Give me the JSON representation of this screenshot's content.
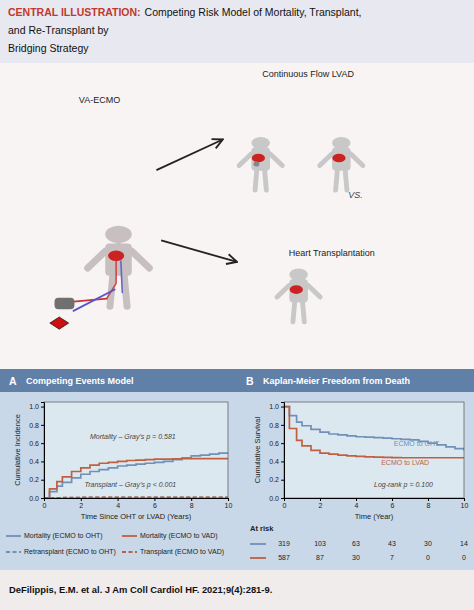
{
  "title": [
    "CENTRAL ILLUSTRATION:",
    "Competing Risk Model of Mortality, Transplant,",
    "and Re-Transplant by",
    "Bridging Strategy"
  ],
  "annotations": [
    "VA-ECMO",
    "Continuous Flow LVAD",
    "VS.",
    "Heart Transplantation",
    "DeFilippis, E.M. et al. J Am Coll Cardiol HF. 2021;9(4):281-9."
  ],
  "chart_data": [
    {
      "type": "step",
      "title": "Competing Events Model",
      "annotations": [
        "A",
        "Mortality – Gray’s p = 0.581",
        "Transplant – Gray’s p < 0.001"
      ],
      "xlabel": "Time Since OHT or LVAD (Years)",
      "ylabel": "Cumulative Incidence",
      "xlim": [
        0,
        10
      ],
      "ylim": [
        0.0,
        1.05
      ],
      "xticks": [
        0,
        2,
        4,
        6,
        8,
        10
      ],
      "yticks": [
        {
          "value": 0.0,
          "label": "0.0"
        },
        {
          "value": 0.2,
          "label": "0.2"
        },
        {
          "value": 0.4,
          "label": "0.4"
        },
        {
          "value": 0.6,
          "label": "0.6"
        },
        {
          "value": 0.8,
          "label": "0.8"
        },
        {
          "value": 1.0,
          "label": "1.0"
        }
      ],
      "grid": false,
      "legend": "bottom",
      "series": [
        {
          "name": "Mortality (ECMO to OHT)",
          "color": "#7090b8",
          "line_style": "solid",
          "x": [
            0,
            0.3,
            0.7,
            1.0,
            1.5,
            2.0,
            2.5,
            3.0,
            3.5,
            4.0,
            4.5,
            5.0,
            5.5,
            6.0,
            6.5,
            7.0,
            7.5,
            8.0,
            8.5,
            9.0,
            9.5,
            10.0
          ],
          "values": [
            0.0,
            0.07,
            0.13,
            0.17,
            0.22,
            0.26,
            0.29,
            0.31,
            0.33,
            0.35,
            0.36,
            0.37,
            0.38,
            0.39,
            0.4,
            0.42,
            0.44,
            0.46,
            0.47,
            0.48,
            0.49,
            0.495
          ]
        },
        {
          "name": "Mortality (ECMO to VAD)",
          "color": "#c06040",
          "line_style": "solid",
          "x": [
            0,
            0.3,
            0.7,
            1.0,
            1.5,
            2.0,
            2.5,
            3.0,
            3.5,
            4.0,
            4.5,
            5.0,
            5.5,
            6.0,
            6.5,
            7.0,
            7.5,
            8.0,
            8.5,
            9.0,
            9.5,
            10.0
          ],
          "values": [
            0.0,
            0.1,
            0.18,
            0.23,
            0.29,
            0.33,
            0.36,
            0.38,
            0.39,
            0.4,
            0.41,
            0.415,
            0.42,
            0.425,
            0.425,
            0.428,
            0.43,
            0.43,
            0.43,
            0.43,
            0.43,
            0.43
          ]
        },
        {
          "name": "Retransplant (ECMO to OHT)",
          "color": "#7090b8",
          "line_style": "dashed",
          "x": [
            0,
            0.5,
            1.0,
            1.5,
            2.0,
            2.5,
            3.0,
            3.5,
            4.0,
            4.5,
            5.0,
            5.5,
            6.0,
            6.5,
            7.0,
            7.5,
            8.0,
            8.5,
            9.0,
            9.5,
            10.0
          ],
          "values": [
            0.0,
            0.004,
            0.006,
            0.007,
            0.008,
            0.008,
            0.008,
            0.008,
            0.008,
            0.008,
            0.008,
            0.008,
            0.008,
            0.008,
            0.008,
            0.008,
            0.008,
            0.008,
            0.008,
            0.008,
            0.008
          ]
        },
        {
          "name": "Transplant (ECMO to VAD)",
          "color": "#c06040",
          "line_style": "dashed",
          "x": [
            0,
            0.5,
            1.0,
            1.5,
            2.0,
            2.5,
            3.0,
            3.5,
            4.0,
            4.5,
            5.0,
            5.5,
            6.0,
            6.5,
            7.0,
            7.5,
            8.0,
            8.5,
            9.0,
            9.5,
            10.0
          ],
          "values": [
            0.0,
            0.004,
            0.006,
            0.007,
            0.008,
            0.008,
            0.008,
            0.008,
            0.008,
            0.008,
            0.008,
            0.008,
            0.008,
            0.008,
            0.008,
            0.008,
            0.008,
            0.008,
            0.008,
            0.008,
            0.008
          ]
        }
      ]
    },
    {
      "type": "step",
      "title": "Kaplan-Meier Freedom from Death",
      "annotations": [
        "B",
        "Log-rank p = 0.100",
        "At risk"
      ],
      "xlabel": "Time (Year)",
      "ylabel": "Cumulative Survival",
      "xlim": [
        0,
        10
      ],
      "ylim": [
        0.0,
        1.05
      ],
      "xticks": [
        0,
        2,
        4,
        6,
        8,
        10
      ],
      "yticks": [
        {
          "value": 0.0,
          "label": "0.0"
        },
        {
          "value": 0.2,
          "label": "0.2"
        },
        {
          "value": 0.4,
          "label": "0.4"
        },
        {
          "value": 0.6,
          "label": "0.6"
        },
        {
          "value": 0.8,
          "label": "0.8"
        },
        {
          "value": 1.0,
          "label": "1.0"
        }
      ],
      "grid": false,
      "series": [
        {
          "name": "ECMO to OHT",
          "color": "#7090b8",
          "line_style": "solid",
          "x": [
            0,
            0.3,
            0.7,
            1.0,
            1.5,
            2.0,
            2.5,
            3.0,
            3.5,
            4.0,
            4.5,
            5.0,
            5.5,
            6.0,
            6.5,
            7.0,
            7.5,
            8.0,
            8.5,
            9.0,
            9.5,
            10.0
          ],
          "values": [
            1.0,
            0.9,
            0.83,
            0.79,
            0.75,
            0.72,
            0.7,
            0.69,
            0.68,
            0.67,
            0.665,
            0.66,
            0.655,
            0.648,
            0.642,
            0.635,
            0.62,
            0.6,
            0.58,
            0.56,
            0.54,
            0.52
          ],
          "at_risk": [
            319,
            103,
            63,
            43,
            30,
            14
          ]
        },
        {
          "name": "ECMO to LVAD",
          "color": "#c06040",
          "line_style": "solid",
          "x": [
            0,
            0.3,
            0.7,
            1.0,
            1.5,
            2.0,
            2.5,
            3.0,
            3.5,
            4.0,
            4.5,
            5.0,
            5.5,
            6.0,
            6.5,
            7.0,
            7.5,
            8.0,
            8.5,
            9.0,
            9.5,
            10.0
          ],
          "values": [
            1.0,
            0.76,
            0.63,
            0.57,
            0.52,
            0.49,
            0.48,
            0.47,
            0.46,
            0.455,
            0.45,
            0.447,
            0.444,
            0.442,
            0.44,
            0.44,
            0.44,
            0.44,
            0.44,
            0.44,
            0.44,
            0.44
          ],
          "at_risk": [
            587,
            87,
            30,
            7,
            0,
            0
          ]
        }
      ]
    }
  ]
}
